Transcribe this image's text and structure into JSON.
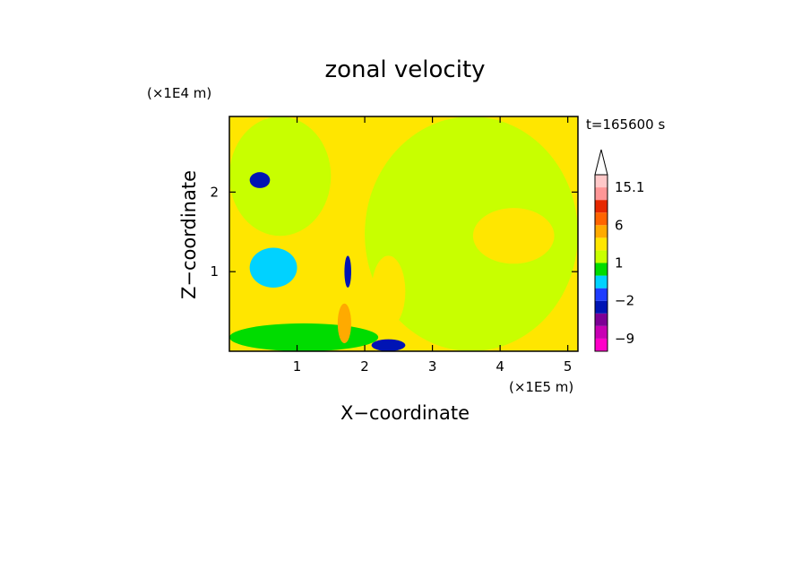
{
  "chart_data": {
    "type": "heatmap",
    "title": "zonal velocity",
    "xlabel": "X−coordinate",
    "ylabel": "Z−coordinate",
    "x_unit": "(×1E5 m)",
    "y_unit": "(×1E4 m)",
    "time_label": "t=165600 s",
    "xlim": [
      0,
      5.15
    ],
    "ylim": [
      0,
      2.95
    ],
    "x_ticks": [
      "1",
      "2",
      "3",
      "4",
      "5"
    ],
    "x_tick_values": [
      1,
      2,
      3,
      4,
      5
    ],
    "y_ticks": [
      "1",
      "2"
    ],
    "y_tick_values": [
      1,
      2
    ],
    "colorbar": {
      "labels": [
        "15.1",
        "6",
        "1",
        "−2",
        "−9"
      ],
      "label_values": [
        15.1,
        6,
        1,
        -2,
        -9
      ],
      "levels": [
        -14,
        -9,
        -6,
        -4,
        -2,
        -1,
        0,
        1,
        2,
        4,
        6,
        9,
        12,
        15.1
      ],
      "colors": [
        "#ff00c8",
        "#c800b4",
        "#7d0096",
        "#0014b4",
        "#1e3cff",
        "#00d2ff",
        "#00dc00",
        "#c8ff00",
        "#ffe600",
        "#ffaa00",
        "#ff6400",
        "#e62800",
        "#ff9696",
        "#ffc8c8"
      ],
      "extend_max_color": "#ffffff"
    },
    "regions": [
      {
        "value": 1.2,
        "x": [
          0.0,
          1.5
        ],
        "z": [
          1.45,
          2.95
        ]
      },
      {
        "value": 1.2,
        "x": [
          2.0,
          5.15
        ],
        "z": [
          0.0,
          2.95
        ]
      },
      {
        "value": 0.5,
        "x": [
          0.0,
          2.2
        ],
        "z": [
          0.0,
          0.35
        ]
      },
      {
        "value": -0.5,
        "x": [
          0.3,
          1.0
        ],
        "z": [
          0.8,
          1.3
        ]
      },
      {
        "value": 3.0,
        "x": [
          2.1,
          2.6
        ],
        "z": [
          0.3,
          1.2
        ]
      },
      {
        "value": 3.0,
        "x": [
          3.6,
          4.8
        ],
        "z": [
          1.1,
          1.8
        ]
      },
      {
        "value": -3.0,
        "x": [
          2.1,
          2.6
        ],
        "z": [
          0.0,
          0.15
        ]
      },
      {
        "value": -3.0,
        "x": [
          0.3,
          0.6
        ],
        "z": [
          2.05,
          2.25
        ]
      },
      {
        "value": -3.0,
        "x": [
          1.7,
          1.8
        ],
        "z": [
          0.8,
          1.2
        ]
      },
      {
        "value": 5.0,
        "x": [
          1.6,
          1.8
        ],
        "z": [
          0.1,
          0.6
        ]
      }
    ]
  }
}
